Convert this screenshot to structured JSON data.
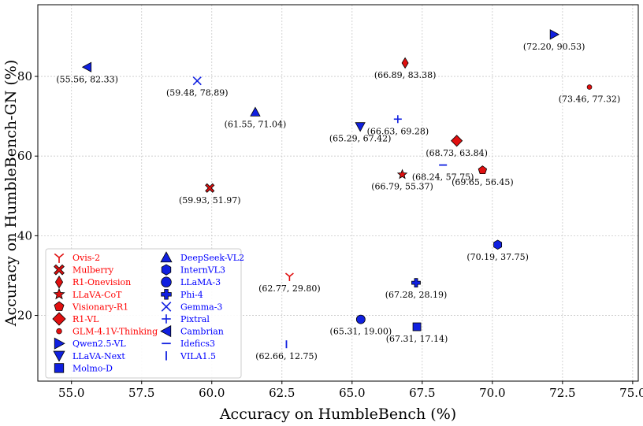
{
  "chart_data": {
    "type": "scatter",
    "xlabel": "Accuracy on HumbleBench (%)",
    "ylabel": "Accuracy on HumbleBench-GN (%)",
    "xlim": [
      53.8,
      75.2
    ],
    "ylim": [
      3.5,
      98
    ],
    "xticks": [
      55.0,
      57.5,
      60.0,
      62.5,
      65.0,
      67.5,
      70.0,
      72.5,
      75.0
    ],
    "xtick_labels": [
      "55.0",
      "57.5",
      "60.0",
      "62.5",
      "65.0",
      "67.5",
      "70.0",
      "72.5",
      "75.0"
    ],
    "yticks": [
      20,
      40,
      60,
      80
    ],
    "ytick_labels": [
      "20",
      "40",
      "60",
      "80"
    ],
    "grid": true,
    "legend_position": "bottom-left",
    "colors": {
      "red_group": "#ff0000",
      "blue_group": "#0000ff",
      "marker_red": "#e01010",
      "marker_blue": "#1020e0",
      "stroke": "#000000",
      "grid": "#c8c8c8"
    },
    "series": [
      {
        "name": "Ovis-2",
        "x": 62.77,
        "y": 29.8,
        "label": "(62.77, 29.80)",
        "marker": "tri_down",
        "group": "red",
        "label_pos": "below"
      },
      {
        "name": "Mulberry",
        "x": 59.93,
        "y": 51.97,
        "label": "(59.93, 51.97)",
        "marker": "X",
        "group": "red",
        "label_pos": "below"
      },
      {
        "name": "R1-Onevision",
        "x": 66.89,
        "y": 83.38,
        "label": "(66.89, 83.38)",
        "marker": "thin_diamond",
        "group": "red",
        "label_pos": "below"
      },
      {
        "name": "LLaVA-CoT",
        "x": 66.79,
        "y": 55.37,
        "label": "(66.79, 55.37)",
        "marker": "star",
        "group": "red",
        "label_pos": "below"
      },
      {
        "name": "Visionary-R1",
        "x": 69.65,
        "y": 56.45,
        "label": "(69.65, 56.45)",
        "marker": "pentagon",
        "group": "red",
        "label_pos": "below"
      },
      {
        "name": "R1-VL",
        "x": 68.73,
        "y": 63.84,
        "label": "(68.73, 63.84)",
        "marker": "diamond",
        "group": "red",
        "label_pos": "below"
      },
      {
        "name": "GLM-4.1V-Thinking",
        "x": 73.46,
        "y": 77.32,
        "label": "(73.46, 77.32)",
        "marker": "dot",
        "group": "red",
        "label_pos": "below"
      },
      {
        "name": "Qwen2.5-VL",
        "x": 72.2,
        "y": 90.53,
        "label": "(72.20, 90.53)",
        "marker": "triangle_right",
        "group": "blue",
        "label_pos": "below"
      },
      {
        "name": "LLaVA-Next",
        "x": 65.29,
        "y": 67.42,
        "label": "(65.29, 67.42)",
        "marker": "triangle_down",
        "group": "blue",
        "label_pos": "below"
      },
      {
        "name": "Molmo-D",
        "x": 67.31,
        "y": 17.14,
        "label": "(67.31, 17.14)",
        "marker": "square",
        "group": "blue",
        "label_pos": "below"
      },
      {
        "name": "DeepSeek-VL2",
        "x": 61.55,
        "y": 71.04,
        "label": "(61.55, 71.04)",
        "marker": "triangle_up",
        "group": "blue",
        "label_pos": "below"
      },
      {
        "name": "InternVL3",
        "x": 70.19,
        "y": 37.75,
        "label": "(70.19, 37.75)",
        "marker": "hexagon",
        "group": "blue",
        "label_pos": "below"
      },
      {
        "name": "LLaMA-3",
        "x": 65.31,
        "y": 19.0,
        "label": "(65.31, 19.00)",
        "marker": "circle",
        "group": "blue",
        "label_pos": "below"
      },
      {
        "name": "Phi-4",
        "x": 67.28,
        "y": 28.19,
        "label": "(67.28, 28.19)",
        "marker": "plus_filled",
        "group": "blue",
        "label_pos": "below"
      },
      {
        "name": "Gemma-3",
        "x": 59.48,
        "y": 78.89,
        "label": "(59.48, 78.89)",
        "marker": "x",
        "group": "blue",
        "label_pos": "below"
      },
      {
        "name": "Pixtral",
        "x": 66.63,
        "y": 69.28,
        "label": "(66.63, 69.28)",
        "marker": "plus",
        "group": "blue",
        "label_pos": "below"
      },
      {
        "name": "Cambrian",
        "x": 55.56,
        "y": 82.33,
        "label": "(55.56, 82.33)",
        "marker": "triangle_left",
        "group": "blue",
        "label_pos": "below"
      },
      {
        "name": "Idefics3",
        "x": 68.24,
        "y": 57.75,
        "label": "(68.24, 57.75)",
        "marker": "hline",
        "group": "blue",
        "label_pos": "below"
      },
      {
        "name": "VILA1.5",
        "x": 62.66,
        "y": 12.75,
        "label": "(62.66, 12.75)",
        "marker": "vline",
        "group": "blue",
        "label_pos": "below"
      }
    ],
    "legend": {
      "column1": [
        "Ovis-2",
        "Mulberry",
        "R1-Onevision",
        "LLaVA-CoT",
        "Visionary-R1",
        "R1-VL",
        "GLM-4.1V-Thinking",
        "Qwen2.5-VL",
        "LLaVA-Next",
        "Molmo-D"
      ],
      "column2": [
        "DeepSeek-VL2",
        "InternVL3",
        "LLaMA-3",
        "Phi-4",
        "Gemma-3",
        "Pixtral",
        "Cambrian",
        "Idefics3",
        "VILA1.5"
      ]
    }
  }
}
